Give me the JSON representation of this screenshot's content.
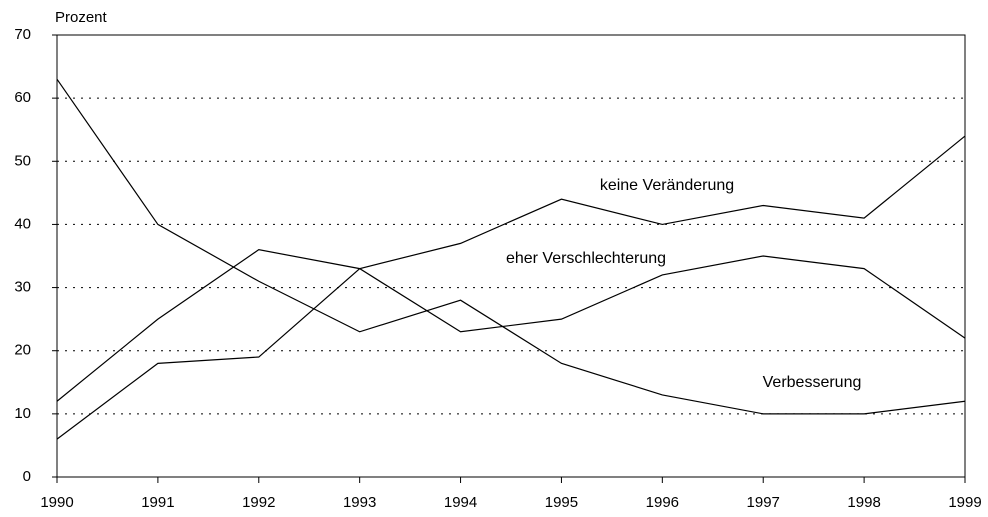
{
  "chart_data": {
    "type": "line",
    "y_label": "Prozent",
    "x": [
      1990,
      1991,
      1992,
      1993,
      1994,
      1995,
      1996,
      1997,
      1998,
      1999
    ],
    "series": [
      {
        "name": "keine Veränderung",
        "color": "#000000",
        "values": [
          6,
          18,
          19,
          33,
          37,
          44,
          40,
          43,
          41,
          54
        ]
      },
      {
        "name": "eher Verschlechterung",
        "color": "#000000",
        "values": [
          12,
          25,
          36,
          33,
          23,
          25,
          32,
          35,
          33,
          22
        ]
      },
      {
        "name": "Verbesserung",
        "color": "#000000",
        "values": [
          63,
          40,
          31,
          23,
          28,
          18,
          13,
          10,
          10,
          12
        ]
      }
    ],
    "xlim": [
      1990,
      1999
    ],
    "xticks": [
      1990,
      1991,
      1992,
      1993,
      1994,
      1995,
      1996,
      1997,
      1998,
      1999
    ],
    "ylim": [
      0,
      70
    ],
    "yticks": [
      0,
      10,
      20,
      30,
      40,
      50,
      60,
      70
    ],
    "grid": true
  }
}
